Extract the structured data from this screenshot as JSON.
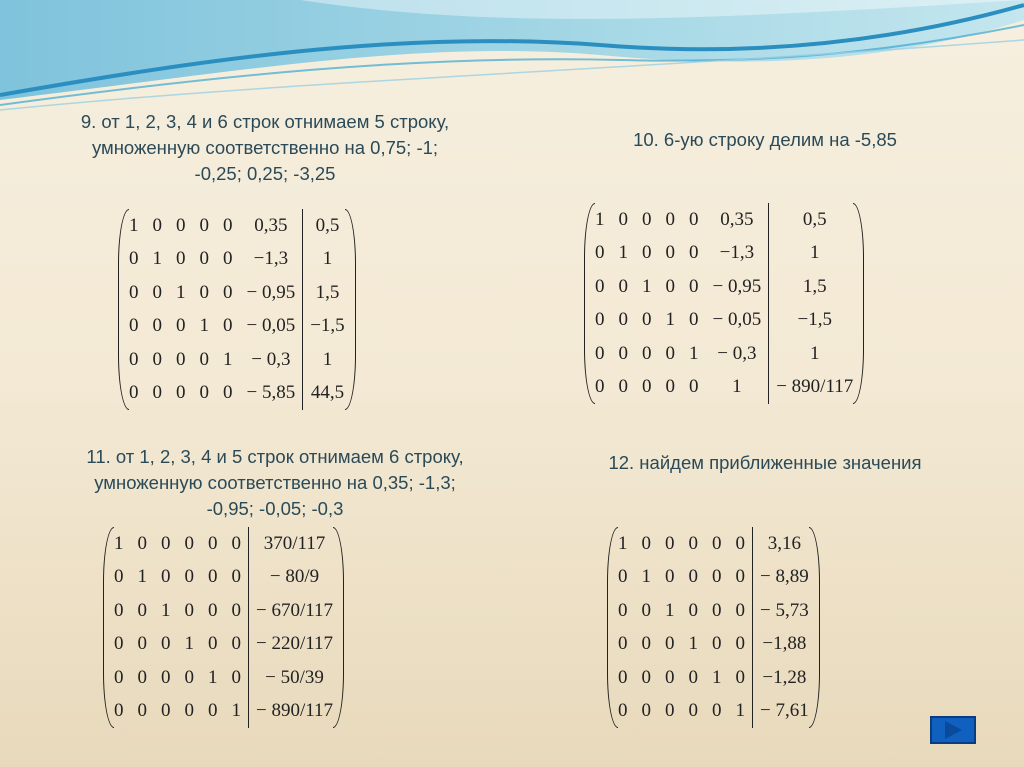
{
  "colors": {
    "heading": "#2b4a58",
    "wave": "#2a8fc0",
    "nav_button": "#1060c0"
  },
  "steps": [
    {
      "heading": [
        "9. от 1, 2, 3, 4 и  6 строк отнимаем 5 строку,",
        "умноженную соответственно на 0,75; -1;",
        "-0,25; 0,25; -3,25"
      ],
      "matrix": [
        [
          "1",
          "0",
          "0",
          "0",
          "0",
          "0,35",
          "0,5"
        ],
        [
          "0",
          "1",
          "0",
          "0",
          "0",
          "−1,3",
          "1"
        ],
        [
          "0",
          "0",
          "1",
          "0",
          "0",
          "− 0,95",
          "1,5"
        ],
        [
          "0",
          "0",
          "0",
          "1",
          "0",
          "− 0,05",
          "−1,5"
        ],
        [
          "0",
          "0",
          "0",
          "0",
          "1",
          "− 0,3",
          "1"
        ],
        [
          "0",
          "0",
          "0",
          "0",
          "0",
          "− 5,85",
          "44,5"
        ]
      ]
    },
    {
      "heading": [
        "10. 6-ую строку делим на -5,85"
      ],
      "matrix": [
        [
          "1",
          "0",
          "0",
          "0",
          "0",
          "0,35",
          "0,5"
        ],
        [
          "0",
          "1",
          "0",
          "0",
          "0",
          "−1,3",
          "1"
        ],
        [
          "0",
          "0",
          "1",
          "0",
          "0",
          "− 0,95",
          "1,5"
        ],
        [
          "0",
          "0",
          "0",
          "1",
          "0",
          "− 0,05",
          "−1,5"
        ],
        [
          "0",
          "0",
          "0",
          "0",
          "1",
          "− 0,3",
          "1"
        ],
        [
          "0",
          "0",
          "0",
          "0",
          "0",
          "1",
          "− 890/117"
        ]
      ]
    },
    {
      "heading": [
        "11. от 1, 2, 3, 4 и 5 строк отнимаем 6 строку,",
        "умноженную соответственно на 0,35; -1,3;",
        "-0,95; -0,05; -0,3"
      ],
      "matrix": [
        [
          "1",
          "0",
          "0",
          "0",
          "0",
          "0",
          "370/117"
        ],
        [
          "0",
          "1",
          "0",
          "0",
          "0",
          "0",
          "− 80/9"
        ],
        [
          "0",
          "0",
          "1",
          "0",
          "0",
          "0",
          "− 670/117"
        ],
        [
          "0",
          "0",
          "0",
          "1",
          "0",
          "0",
          "− 220/117"
        ],
        [
          "0",
          "0",
          "0",
          "0",
          "1",
          "0",
          "− 50/39"
        ],
        [
          "0",
          "0",
          "0",
          "0",
          "0",
          "1",
          "− 890/117"
        ]
      ]
    },
    {
      "heading": [
        "12. найдем приближенные значения"
      ],
      "matrix": [
        [
          "1",
          "0",
          "0",
          "0",
          "0",
          "0",
          "3,16"
        ],
        [
          "0",
          "1",
          "0",
          "0",
          "0",
          "0",
          "− 8,89"
        ],
        [
          "0",
          "0",
          "1",
          "0",
          "0",
          "0",
          "− 5,73"
        ],
        [
          "0",
          "0",
          "0",
          "1",
          "0",
          "0",
          "−1,88"
        ],
        [
          "0",
          "0",
          "0",
          "0",
          "1",
          "0",
          "−1,28"
        ],
        [
          "0",
          "0",
          "0",
          "0",
          "0",
          "1",
          "− 7,61"
        ]
      ]
    }
  ],
  "nav": {
    "icon": "play-next-icon"
  }
}
